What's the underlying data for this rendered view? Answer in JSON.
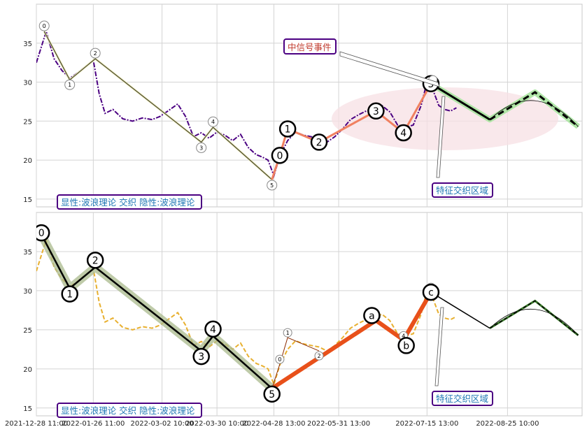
{
  "chart_data": [
    {
      "type": "line",
      "panel": "top",
      "title": "",
      "xlabel": "",
      "ylabel": "",
      "ylim": [
        14,
        40
      ],
      "yticks": [
        15,
        20,
        25,
        30,
        35
      ],
      "grid": true,
      "legend": "none",
      "annotations": {
        "label_box": "显性:波浪理论 交织 隐性:波浪理论",
        "signal_box": "中信号事件",
        "zone_box": "特征交织区域"
      },
      "series": [
        {
          "style": "dash-dot price line",
          "color": "#4b0082",
          "x": [
            "2021-12-28",
            "2022-01-02",
            "2022-01-06",
            "2022-01-10",
            "2022-01-14",
            "2022-01-18",
            "2022-01-22",
            "2022-01-26",
            "2022-01-29",
            "2022-02-01",
            "2022-02-05",
            "2022-02-10",
            "2022-02-15",
            "2022-02-20",
            "2022-02-25",
            "2022-03-01",
            "2022-03-05",
            "2022-03-10",
            "2022-03-14",
            "2022-03-18",
            "2022-03-22",
            "2022-03-26",
            "2022-03-30",
            "2022-04-03",
            "2022-04-07",
            "2022-04-11",
            "2022-04-15",
            "2022-04-19",
            "2022-04-22",
            "2022-04-25",
            "2022-04-28",
            "2022-05-01",
            "2022-05-05",
            "2022-05-09",
            "2022-05-13",
            "2022-05-17",
            "2022-05-21",
            "2022-05-25",
            "2022-05-29",
            "2022-06-02",
            "2022-06-06",
            "2022-06-10",
            "2022-06-14",
            "2022-06-18",
            "2022-06-22",
            "2022-06-26",
            "2022-06-30",
            "2022-07-04",
            "2022-07-08",
            "2022-07-12",
            "2022-07-15",
            "2022-07-18",
            "2022-07-21",
            "2022-07-24",
            "2022-07-27",
            "2022-07-30"
          ],
          "values": [
            32.5,
            36.5,
            33,
            31.5,
            30.5,
            31.2,
            32,
            32.8,
            28.5,
            26,
            26.5,
            25.3,
            25,
            25.4,
            25.2,
            25.6,
            26.3,
            27.2,
            25.6,
            23,
            23.5,
            22.8,
            23.6,
            23.2,
            22.5,
            23.3,
            21.6,
            20.7,
            20.4,
            20,
            18,
            20.5,
            22.5,
            23.6,
            23.2,
            23,
            22.8,
            22.3,
            23,
            24,
            25.2,
            25.8,
            26.3,
            26.5,
            27,
            26.2,
            24.5,
            24.2,
            24.5,
            27,
            30,
            29,
            27,
            26.5,
            26.3,
            26.7
          ]
        },
        {
          "style": "thin primary wave line",
          "color": "#6b6b2a",
          "labels": [
            "0",
            "1",
            "2",
            "3",
            "4",
            "5"
          ],
          "x": [
            "2022-01-01",
            "2022-01-14",
            "2022-01-27",
            "2022-03-22",
            "2022-03-28",
            "2022-04-27"
          ],
          "values": [
            36.5,
            30.3,
            33,
            22.3,
            24.2,
            17.5
          ]
        },
        {
          "style": "salmon secondary wave line",
          "color": "#f08060",
          "labels": [
            "0",
            "1",
            "2",
            "3",
            "4",
            "5"
          ],
          "x": [
            "2022-04-27",
            "2022-05-01",
            "2022-05-05",
            "2022-05-21",
            "2022-06-19",
            "2022-07-03",
            "2022-07-17"
          ],
          "values": [
            17.5,
            20.6,
            24,
            22.3,
            26.3,
            23.5,
            29.8
          ]
        },
        {
          "style": "black projection (solid then dashed)",
          "color": "#000000",
          "x": [
            "2022-07-17",
            "2022-08-16",
            "2022-09-08",
            "2022-09-30"
          ],
          "values": [
            29.8,
            25.2,
            28.7,
            24.3
          ]
        }
      ]
    },
    {
      "type": "line",
      "panel": "bottom",
      "title": "",
      "xlabel": "",
      "ylabel": "",
      "ylim": [
        14,
        40
      ],
      "yticks": [
        15,
        20,
        25,
        30,
        35
      ],
      "xticks": [
        "2021-12-28 11:00",
        "2022-01-26 11:00",
        "2022-03-02 10:00",
        "2022-03-30 10:00",
        "2022-04-28 13:00",
        "2022-05-31 13:00",
        "2022-07-15 13:00",
        "2022-08-25 10:00"
      ],
      "grid": true,
      "legend": "none",
      "annotations": {
        "label_box": "显性:波浪理论 交织 隐性:波浪理论",
        "zone_box": "特征交织区域"
      },
      "series": [
        {
          "style": "dashed price line",
          "color": "#e8b030",
          "x": [
            "2021-12-28",
            "2022-01-02",
            "2022-01-06",
            "2022-01-10",
            "2022-01-14",
            "2022-01-18",
            "2022-01-22",
            "2022-01-26",
            "2022-01-29",
            "2022-02-01",
            "2022-02-05",
            "2022-02-10",
            "2022-02-15",
            "2022-02-20",
            "2022-02-25",
            "2022-03-01",
            "2022-03-05",
            "2022-03-10",
            "2022-03-14",
            "2022-03-18",
            "2022-03-22",
            "2022-03-26",
            "2022-03-30",
            "2022-04-03",
            "2022-04-07",
            "2022-04-11",
            "2022-04-15",
            "2022-04-19",
            "2022-04-22",
            "2022-04-25",
            "2022-04-28",
            "2022-05-01",
            "2022-05-05",
            "2022-05-09",
            "2022-05-13",
            "2022-05-17",
            "2022-05-21",
            "2022-05-25",
            "2022-05-29",
            "2022-06-02",
            "2022-06-06",
            "2022-06-10",
            "2022-06-14",
            "2022-06-18",
            "2022-06-22",
            "2022-06-26",
            "2022-06-30",
            "2022-07-04",
            "2022-07-08",
            "2022-07-12",
            "2022-07-15",
            "2022-07-18",
            "2022-07-21",
            "2022-07-24",
            "2022-07-27",
            "2022-07-30"
          ],
          "values": [
            32.5,
            36.5,
            33,
            31.5,
            30.5,
            31.2,
            32,
            32.8,
            28.5,
            26,
            26.5,
            25.3,
            25,
            25.4,
            25.2,
            25.6,
            26.3,
            27.2,
            25.6,
            23,
            23.5,
            22.8,
            23.6,
            23.2,
            22.5,
            23.3,
            21.6,
            20.7,
            20.4,
            20,
            18,
            20.5,
            22.5,
            23.6,
            23.2,
            23,
            22.8,
            22.3,
            23,
            24,
            25.2,
            25.8,
            26.3,
            26.5,
            27,
            26.2,
            24.5,
            24.2,
            24.5,
            27,
            30,
            29,
            27,
            26.5,
            26.3,
            26.7
          ]
        },
        {
          "style": "thick black primary wave over sage band",
          "color": "#000000",
          "labels": [
            "0",
            "1",
            "2",
            "3",
            "4",
            "5"
          ],
          "x": [
            "2022-01-01",
            "2022-01-14",
            "2022-01-27",
            "2022-03-22",
            "2022-03-28",
            "2022-04-27"
          ],
          "values": [
            36.5,
            30.3,
            33,
            22.3,
            24.2,
            17.5
          ]
        },
        {
          "style": "thick orange correction",
          "color": "#e8501a",
          "labels": [
            "a",
            "b",
            "c"
          ],
          "x": [
            "2022-04-27",
            "2022-06-19",
            "2022-07-03",
            "2022-07-17"
          ],
          "values": [
            17.5,
            26.2,
            23.7,
            29.8
          ]
        },
        {
          "style": "minor wave labels",
          "color": "#8b2a00",
          "labels": [
            "0",
            "1",
            "2",
            "3",
            "4",
            "5"
          ],
          "x": [
            "2022-04-27",
            "2022-05-01",
            "2022-05-05",
            "2022-05-21",
            "2022-06-19",
            "2022-07-03",
            "2022-07-17"
          ],
          "values": [
            17.5,
            20.6,
            24,
            22.3,
            26.2,
            23.7,
            29.8
          ]
        },
        {
          "style": "black dashed projection",
          "color": "#000000",
          "x": [
            "2022-07-17",
            "2022-08-16",
            "2022-09-08",
            "2022-09-30"
          ],
          "values": [
            29.8,
            25.2,
            28.7,
            24.3
          ]
        }
      ]
    }
  ]
}
